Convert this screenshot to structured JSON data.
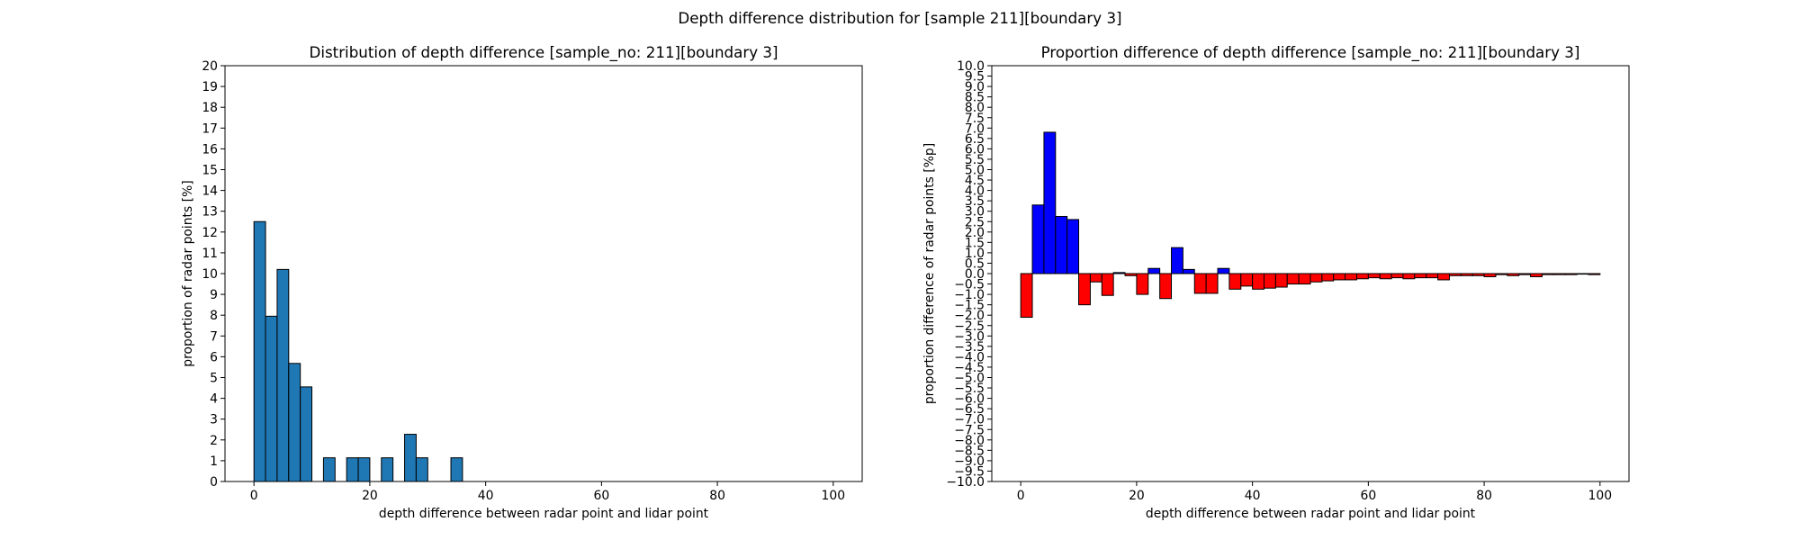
{
  "figure": {
    "suptitle": "Depth difference distribution for [sample 211][boundary 3]"
  },
  "chart_data": [
    {
      "type": "bar",
      "title": "Distribution of depth difference [sample_no: 211][boundary 3]",
      "xlabel": "depth difference between radar point and lidar point",
      "ylabel": "proportion of radar points [%]",
      "xlim": [
        -5,
        105
      ],
      "ylim": [
        0,
        20
      ],
      "xticks": [
        0,
        20,
        40,
        60,
        80,
        100
      ],
      "yticks": [
        0,
        1,
        2,
        3,
        4,
        5,
        6,
        7,
        8,
        9,
        10,
        11,
        12,
        13,
        14,
        15,
        16,
        17,
        18,
        19,
        20
      ],
      "bin_width": 2,
      "bins": [
        {
          "x": 0,
          "value": 12.5
        },
        {
          "x": 2,
          "value": 7.95
        },
        {
          "x": 4,
          "value": 10.2
        },
        {
          "x": 6,
          "value": 5.68
        },
        {
          "x": 8,
          "value": 4.55
        },
        {
          "x": 12,
          "value": 1.14
        },
        {
          "x": 16,
          "value": 1.14
        },
        {
          "x": 18,
          "value": 1.14
        },
        {
          "x": 22,
          "value": 1.14
        },
        {
          "x": 26,
          "value": 2.27
        },
        {
          "x": 28,
          "value": 1.14
        },
        {
          "x": 34,
          "value": 1.14
        }
      ],
      "colors": {
        "bar": "#1f77b4",
        "edge": "#000000"
      }
    },
    {
      "type": "bar",
      "title": "Proportion difference of depth difference [sample_no: 211][boundary 3]",
      "xlabel": "depth difference between radar point and lidar point",
      "ylabel": "proportion difference of radar points [%p]",
      "xlim": [
        -5,
        105
      ],
      "ylim": [
        -10,
        10
      ],
      "xticks": [
        0,
        20,
        40,
        60,
        80,
        100
      ],
      "ytick_step": 0.5,
      "bin_width": 2,
      "bins": [
        {
          "x": 0,
          "value": -2.1
        },
        {
          "x": 2,
          "value": 3.3
        },
        {
          "x": 4,
          "value": 6.8
        },
        {
          "x": 6,
          "value": 2.75
        },
        {
          "x": 8,
          "value": 2.6
        },
        {
          "x": 10,
          "value": -1.5
        },
        {
          "x": 12,
          "value": -0.4
        },
        {
          "x": 14,
          "value": -1.05
        },
        {
          "x": 16,
          "value": 0.05
        },
        {
          "x": 18,
          "value": -0.1
        },
        {
          "x": 20,
          "value": -1.0
        },
        {
          "x": 22,
          "value": 0.25
        },
        {
          "x": 24,
          "value": -1.2
        },
        {
          "x": 26,
          "value": 1.25
        },
        {
          "x": 28,
          "value": 0.2
        },
        {
          "x": 30,
          "value": -0.95
        },
        {
          "x": 32,
          "value": -0.95
        },
        {
          "x": 34,
          "value": 0.25
        },
        {
          "x": 36,
          "value": -0.75
        },
        {
          "x": 38,
          "value": -0.6
        },
        {
          "x": 40,
          "value": -0.75
        },
        {
          "x": 42,
          "value": -0.7
        },
        {
          "x": 44,
          "value": -0.65
        },
        {
          "x": 46,
          "value": -0.5
        },
        {
          "x": 48,
          "value": -0.5
        },
        {
          "x": 50,
          "value": -0.4
        },
        {
          "x": 52,
          "value": -0.35
        },
        {
          "x": 54,
          "value": -0.3
        },
        {
          "x": 56,
          "value": -0.3
        },
        {
          "x": 58,
          "value": -0.25
        },
        {
          "x": 60,
          "value": -0.2
        },
        {
          "x": 62,
          "value": -0.25
        },
        {
          "x": 64,
          "value": -0.2
        },
        {
          "x": 66,
          "value": -0.25
        },
        {
          "x": 68,
          "value": -0.2
        },
        {
          "x": 70,
          "value": -0.2
        },
        {
          "x": 72,
          "value": -0.3
        },
        {
          "x": 74,
          "value": -0.1
        },
        {
          "x": 76,
          "value": -0.1
        },
        {
          "x": 78,
          "value": -0.1
        },
        {
          "x": 80,
          "value": -0.15
        },
        {
          "x": 82,
          "value": -0.05
        },
        {
          "x": 84,
          "value": -0.1
        },
        {
          "x": 86,
          "value": -0.05
        },
        {
          "x": 88,
          "value": -0.15
        },
        {
          "x": 90,
          "value": -0.05
        },
        {
          "x": 92,
          "value": -0.05
        },
        {
          "x": 94,
          "value": -0.05
        },
        {
          "x": 96,
          "value": -0.02
        },
        {
          "x": 98,
          "value": -0.05
        }
      ],
      "colors": {
        "positive": "#0000ff",
        "negative": "#ff0000",
        "edge": "#000000"
      }
    }
  ]
}
